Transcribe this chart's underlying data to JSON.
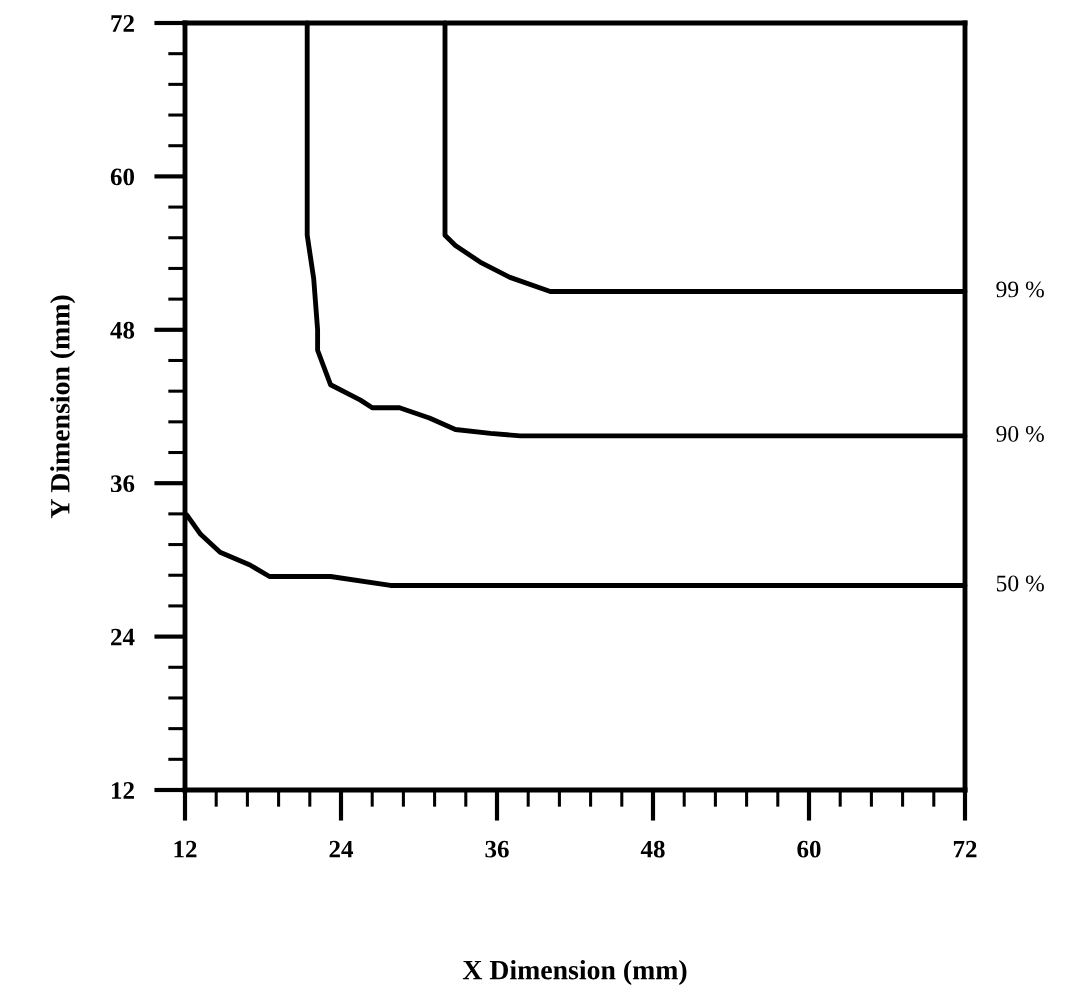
{
  "chart_data": {
    "type": "line",
    "xlabel": "X Dimension (mm)",
    "ylabel": "Y Dimension (mm)",
    "xlim": [
      12,
      72
    ],
    "ylim": [
      12,
      72
    ],
    "xticks": [
      12,
      24,
      36,
      48,
      60,
      72
    ],
    "yticks": [
      12,
      24,
      36,
      48,
      60,
      72
    ],
    "grid": false,
    "legend": false,
    "marker": "none",
    "line_style": "solid",
    "series": [
      {
        "name": "99 %",
        "color": "#000000",
        "x": [
          32,
          32,
          32.8,
          34.7,
          37,
          40.1,
          72
        ],
        "values": [
          72,
          55.4,
          54.6,
          53.3,
          52.1,
          51.0,
          51.0
        ]
      },
      {
        "name": "90 %",
        "color": "#000000",
        "x": [
          21.4,
          21.4,
          21.9,
          22.2,
          22.2,
          23.2,
          25.5,
          26.4,
          28.5,
          30.8,
          32.8,
          35.5,
          37.8,
          72
        ],
        "values": [
          72,
          55.4,
          52,
          48,
          46.4,
          43.7,
          42.5,
          41.9,
          41.9,
          41.1,
          40.2,
          39.9,
          39.7,
          39.7
        ]
      },
      {
        "name": "50 %",
        "color": "#000000",
        "x": [
          12.15,
          13.2,
          14.7,
          17,
          18.5,
          23.2,
          27.8,
          72
        ],
        "values": [
          33.5,
          32,
          30.6,
          29.6,
          28.7,
          28.7,
          28,
          28
        ]
      }
    ]
  }
}
